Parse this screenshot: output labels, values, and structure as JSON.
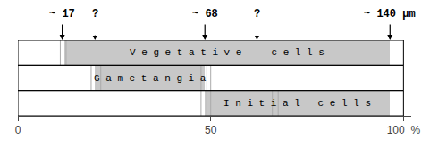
{
  "chart_data": {
    "type": "bar",
    "orientation": "horizontal",
    "categories": [
      "V e g e t a t i v e     c e l l s",
      "G a m e t a n g i a",
      "I n i t i a l   c e l l s"
    ],
    "values": [
      [
        12.0,
        96.5
      ],
      [
        20.0,
        48.5
      ],
      [
        48.5,
        96.5
      ]
    ],
    "color": "#c8c8c8",
    "extent": [
      0,
      100
    ],
    "stripes": [
      {
        "x": [
          11.0,
          12.5
        ],
        "bars": [
          0
        ],
        "color": "#aaaaaa"
      },
      {
        "x": [
          19.0,
          20.5,
          21.5
        ],
        "bars": [
          1
        ],
        "color": "#aaaaaa"
      },
      {
        "x": [
          47.5,
          49.0,
          50.0
        ],
        "bars": [
          1,
          2
        ],
        "color": "#aaaaaa"
      },
      {
        "x": [
          66.0,
          67.5
        ],
        "bars": [
          2
        ],
        "color": "#aaaaaa"
      }
    ],
    "annotations": [
      {
        "text": "~ 17",
        "x": 11.5,
        "line_style": "solid"
      },
      {
        "text": "?",
        "x": 20.0,
        "line_style": "dashed"
      },
      {
        "text": "~ 68",
        "x": 48.5,
        "line_style": "solid"
      },
      {
        "text": "?",
        "x": 62.0,
        "line_style": "dashed"
      },
      {
        "text": "~ 140 µm",
        "x": 96.5,
        "line_style": "solid"
      }
    ],
    "xlim": [
      0,
      102
    ],
    "xticks": [
      0,
      50,
      {
        "value": 100,
        "label": "100  %"
      }
    ],
    "grid": false,
    "tick_labels": "x"
  }
}
